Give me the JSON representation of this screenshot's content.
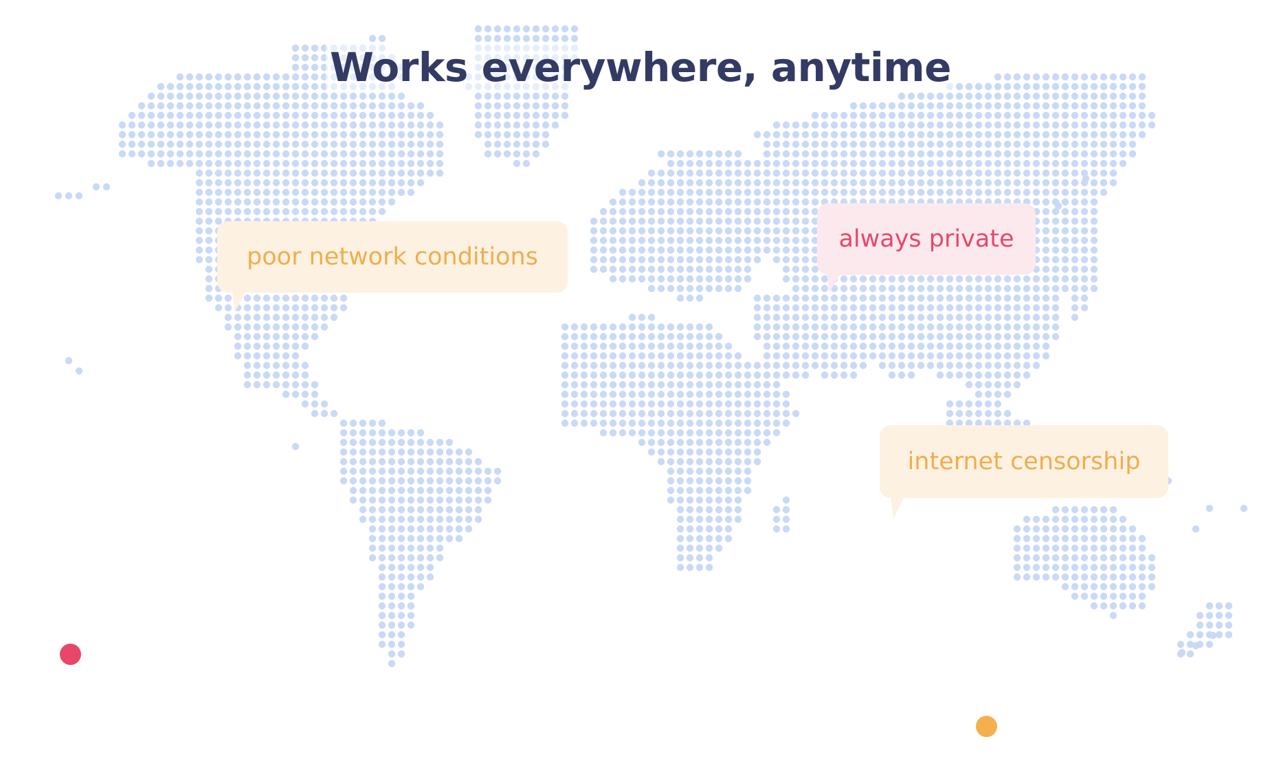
{
  "title": "Works everywhere, anytime",
  "callouts": [
    {
      "label": "poor network conditions",
      "text_color": "#f0ad4e",
      "bg_color": "#fdf1e1"
    },
    {
      "label": "always private",
      "text_color": "#e8476a",
      "bg_color": "#fbe9ee"
    },
    {
      "label": "internet censorship",
      "text_color": "#f0ad4e",
      "bg_color": "#fdf1e1"
    }
  ],
  "colors": {
    "title": "#333a63",
    "map_dot": "#c9d9f6",
    "marker_red": "#e8476a",
    "marker_orange": "#f5b04e"
  },
  "map_style": "dotted world map"
}
